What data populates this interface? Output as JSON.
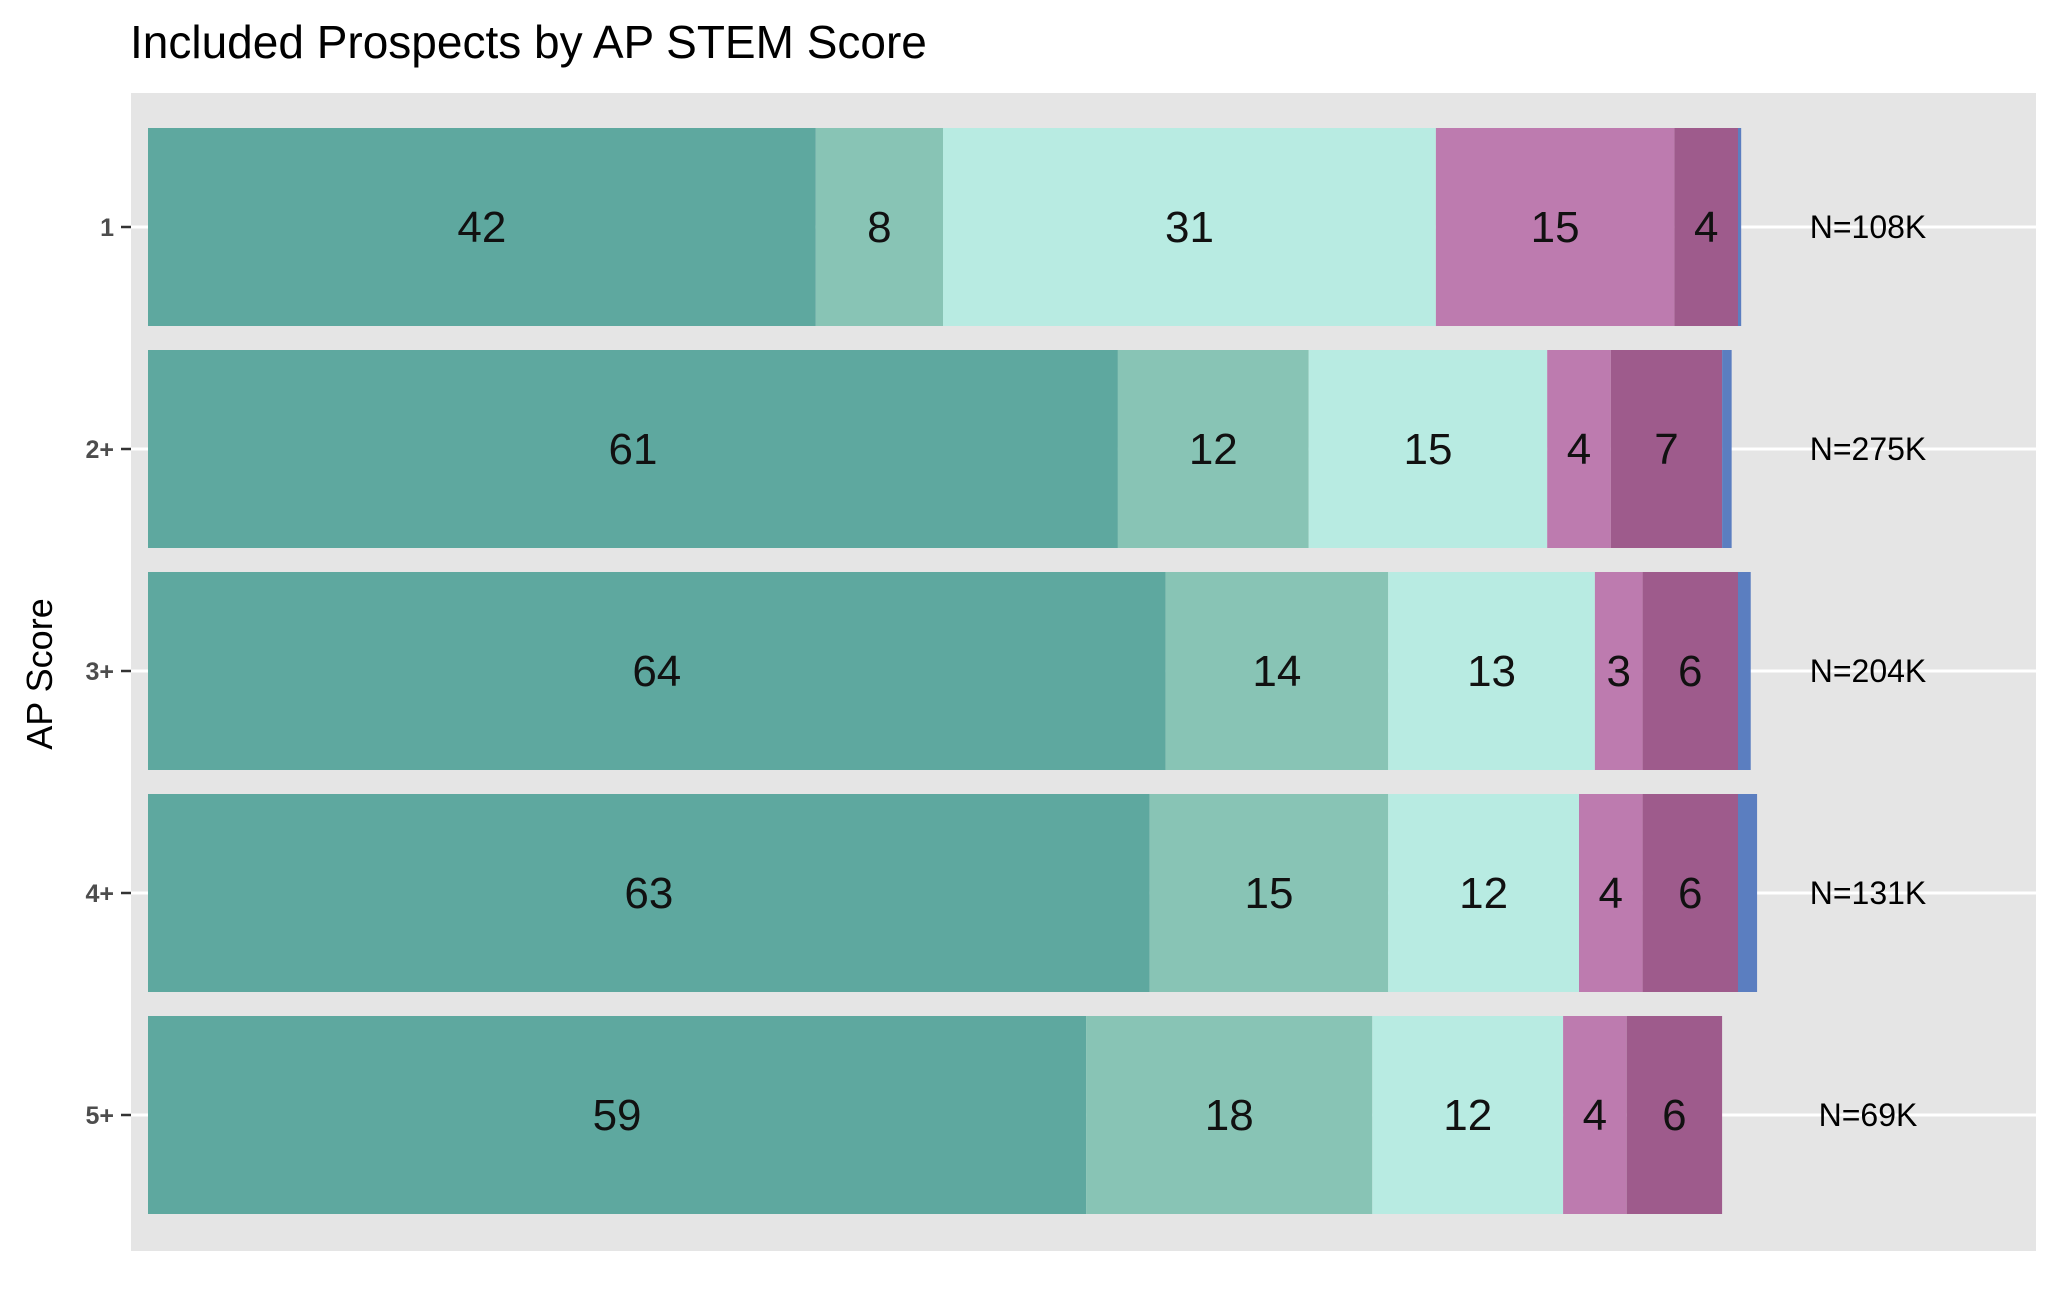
{
  "chart_data": {
    "type": "bar",
    "orientation": "horizontal",
    "stacked": true,
    "title": "Included Prospects by AP STEM Score",
    "xlabel": "",
    "ylabel": "AP Score",
    "xlim": [
      0,
      100
    ],
    "grid": true,
    "legend": "none",
    "categories": [
      "1",
      "2+",
      "3+",
      "4+",
      "5+"
    ],
    "totals": [
      "N=108K",
      "N=275K",
      "N=204K",
      "N=131K",
      "N=69K"
    ],
    "series": [
      {
        "values": [
          42,
          61,
          64,
          63,
          59
        ],
        "color": "#5ea89f"
      },
      {
        "values": [
          8,
          12,
          14,
          15,
          18
        ],
        "color": "#88c4b5"
      },
      {
        "values": [
          31,
          15,
          13,
          12,
          12
        ],
        "color": "#b8ebe2"
      },
      {
        "values": [
          15,
          4,
          3,
          4,
          4
        ],
        "color": "#bd7baf"
      },
      {
        "values": [
          4,
          7,
          6,
          6,
          6
        ],
        "color": "#9e5b8c"
      },
      {
        "values": [
          0.2,
          0.6,
          0.8,
          1.2,
          0
        ],
        "color": "#5b7ec0"
      }
    ],
    "labeled_series_count": 5,
    "panel_background": "#e5e5e5",
    "gridline_color": "#ffffff"
  }
}
